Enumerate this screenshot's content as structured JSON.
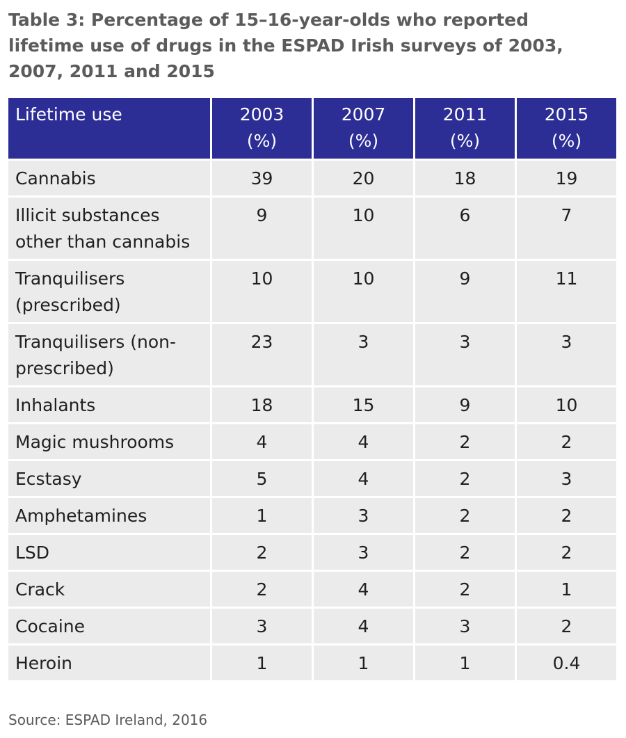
{
  "title": "Table 3: Percentage of 15–16-year-olds who reported lifetime use of drugs in the ESPAD Irish surveys of 2003, 2007, 2011 and 2015",
  "table": {
    "header": {
      "label": "Lifetime use",
      "years": [
        {
          "year": "2003",
          "unit": "(%)"
        },
        {
          "year": "2007",
          "unit": "(%)"
        },
        {
          "year": "2011",
          "unit": "(%)"
        },
        {
          "year": "2015",
          "unit": "(%)"
        }
      ]
    },
    "rows": [
      {
        "label": "Cannabis",
        "values": [
          "39",
          "20",
          "18",
          "19"
        ]
      },
      {
        "label": "Illicit substances other than cannabis",
        "values": [
          "9",
          "10",
          "6",
          "7"
        ]
      },
      {
        "label": "Tranquilisers (prescribed)",
        "values": [
          "10",
          "10",
          "9",
          "11"
        ]
      },
      {
        "label": "Tranquilisers (non-prescribed)",
        "values": [
          "23",
          "3",
          "3",
          "3"
        ]
      },
      {
        "label": "Inhalants",
        "values": [
          "18",
          "15",
          "9",
          "10"
        ]
      },
      {
        "label": "Magic mushrooms",
        "values": [
          "4",
          "4",
          "2",
          "2"
        ]
      },
      {
        "label": "Ecstasy",
        "values": [
          "5",
          "4",
          "2",
          "3"
        ]
      },
      {
        "label": "Amphetamines",
        "values": [
          "1",
          "3",
          "2",
          "2"
        ]
      },
      {
        "label": "LSD",
        "values": [
          "2",
          "3",
          "2",
          "2"
        ]
      },
      {
        "label": "Crack",
        "values": [
          "2",
          "4",
          "2",
          "1"
        ]
      },
      {
        "label": "Cocaine",
        "values": [
          "3",
          "4",
          "3",
          "2"
        ]
      },
      {
        "label": "Heroin",
        "values": [
          "1",
          "1",
          "1",
          "0.4"
        ]
      }
    ]
  },
  "source": "Source: ESPAD Ireland, 2016",
  "colors": {
    "header_background": "#2d2d96",
    "cell_background": "#ebebeb",
    "title_text": "#5b5b5b"
  }
}
